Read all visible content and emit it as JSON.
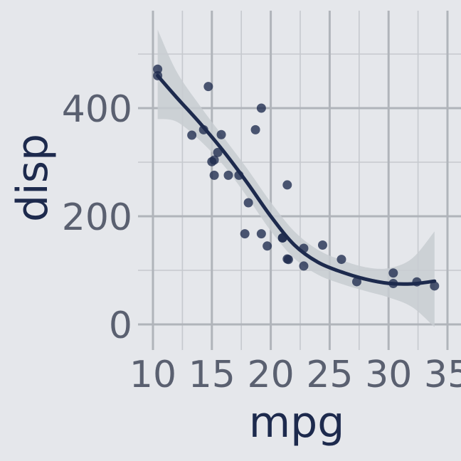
{
  "colors": {
    "background": "#E5E7EB",
    "grid_major": "#B0B4BA",
    "grid_minor": "#C6C9CE",
    "point": "#1D2A4D",
    "point_overlap": "#4A5570",
    "smooth_line": "#1D2A4D",
    "confidence_band": "#C8CCD1",
    "tick_text": "#5A6070",
    "axis_title": "#1D2A4D"
  },
  "chart_data": {
    "type": "scatter",
    "title": "",
    "xlabel": "mpg",
    "ylabel": "disp",
    "xlim": [
      10,
      35
    ],
    "ylim": [
      -20,
      570
    ],
    "x_ticks": [
      10,
      15,
      20,
      25,
      30,
      35
    ],
    "y_ticks": [
      0,
      200,
      400
    ],
    "grid": true,
    "legend": "none",
    "points": [
      {
        "x": 21.0,
        "y": 160
      },
      {
        "x": 21.0,
        "y": 160
      },
      {
        "x": 22.8,
        "y": 108
      },
      {
        "x": 21.4,
        "y": 258
      },
      {
        "x": 18.7,
        "y": 360
      },
      {
        "x": 18.1,
        "y": 225
      },
      {
        "x": 14.3,
        "y": 360
      },
      {
        "x": 24.4,
        "y": 146.7
      },
      {
        "x": 22.8,
        "y": 140.8
      },
      {
        "x": 19.2,
        "y": 167.6
      },
      {
        "x": 17.8,
        "y": 167.6
      },
      {
        "x": 16.4,
        "y": 275.8
      },
      {
        "x": 17.3,
        "y": 275.8
      },
      {
        "x": 15.2,
        "y": 275.8
      },
      {
        "x": 10.4,
        "y": 472
      },
      {
        "x": 10.4,
        "y": 460
      },
      {
        "x": 14.7,
        "y": 440
      },
      {
        "x": 32.4,
        "y": 78.7
      },
      {
        "x": 30.4,
        "y": 75.7
      },
      {
        "x": 33.9,
        "y": 71.1
      },
      {
        "x": 21.5,
        "y": 120.1
      },
      {
        "x": 15.5,
        "y": 318
      },
      {
        "x": 15.2,
        "y": 304
      },
      {
        "x": 13.3,
        "y": 350
      },
      {
        "x": 19.2,
        "y": 400
      },
      {
        "x": 27.3,
        "y": 79
      },
      {
        "x": 26.0,
        "y": 120.3
      },
      {
        "x": 30.4,
        "y": 95.1
      },
      {
        "x": 15.8,
        "y": 351
      },
      {
        "x": 19.7,
        "y": 145
      },
      {
        "x": 15.0,
        "y": 301
      },
      {
        "x": 21.4,
        "y": 121
      }
    ],
    "smooth": [
      {
        "x": 10.4,
        "y": 460,
        "lo": 380,
        "hi": 545
      },
      {
        "x": 12,
        "y": 420,
        "lo": 375,
        "hi": 468
      },
      {
        "x": 14,
        "y": 372,
        "lo": 340,
        "hi": 404
      },
      {
        "x": 16,
        "y": 320,
        "lo": 294,
        "hi": 346
      },
      {
        "x": 18,
        "y": 262,
        "lo": 236,
        "hi": 288
      },
      {
        "x": 20,
        "y": 200,
        "lo": 173,
        "hi": 226
      },
      {
        "x": 22,
        "y": 147,
        "lo": 122,
        "hi": 172
      },
      {
        "x": 24,
        "y": 115,
        "lo": 92,
        "hi": 138
      },
      {
        "x": 26,
        "y": 97,
        "lo": 75,
        "hi": 119
      },
      {
        "x": 28,
        "y": 84,
        "lo": 62,
        "hi": 106
      },
      {
        "x": 30,
        "y": 76,
        "lo": 50,
        "hi": 104
      },
      {
        "x": 32,
        "y": 75,
        "lo": 32,
        "hi": 122
      },
      {
        "x": 33.9,
        "y": 80,
        "lo": -5,
        "hi": 172
      }
    ]
  }
}
